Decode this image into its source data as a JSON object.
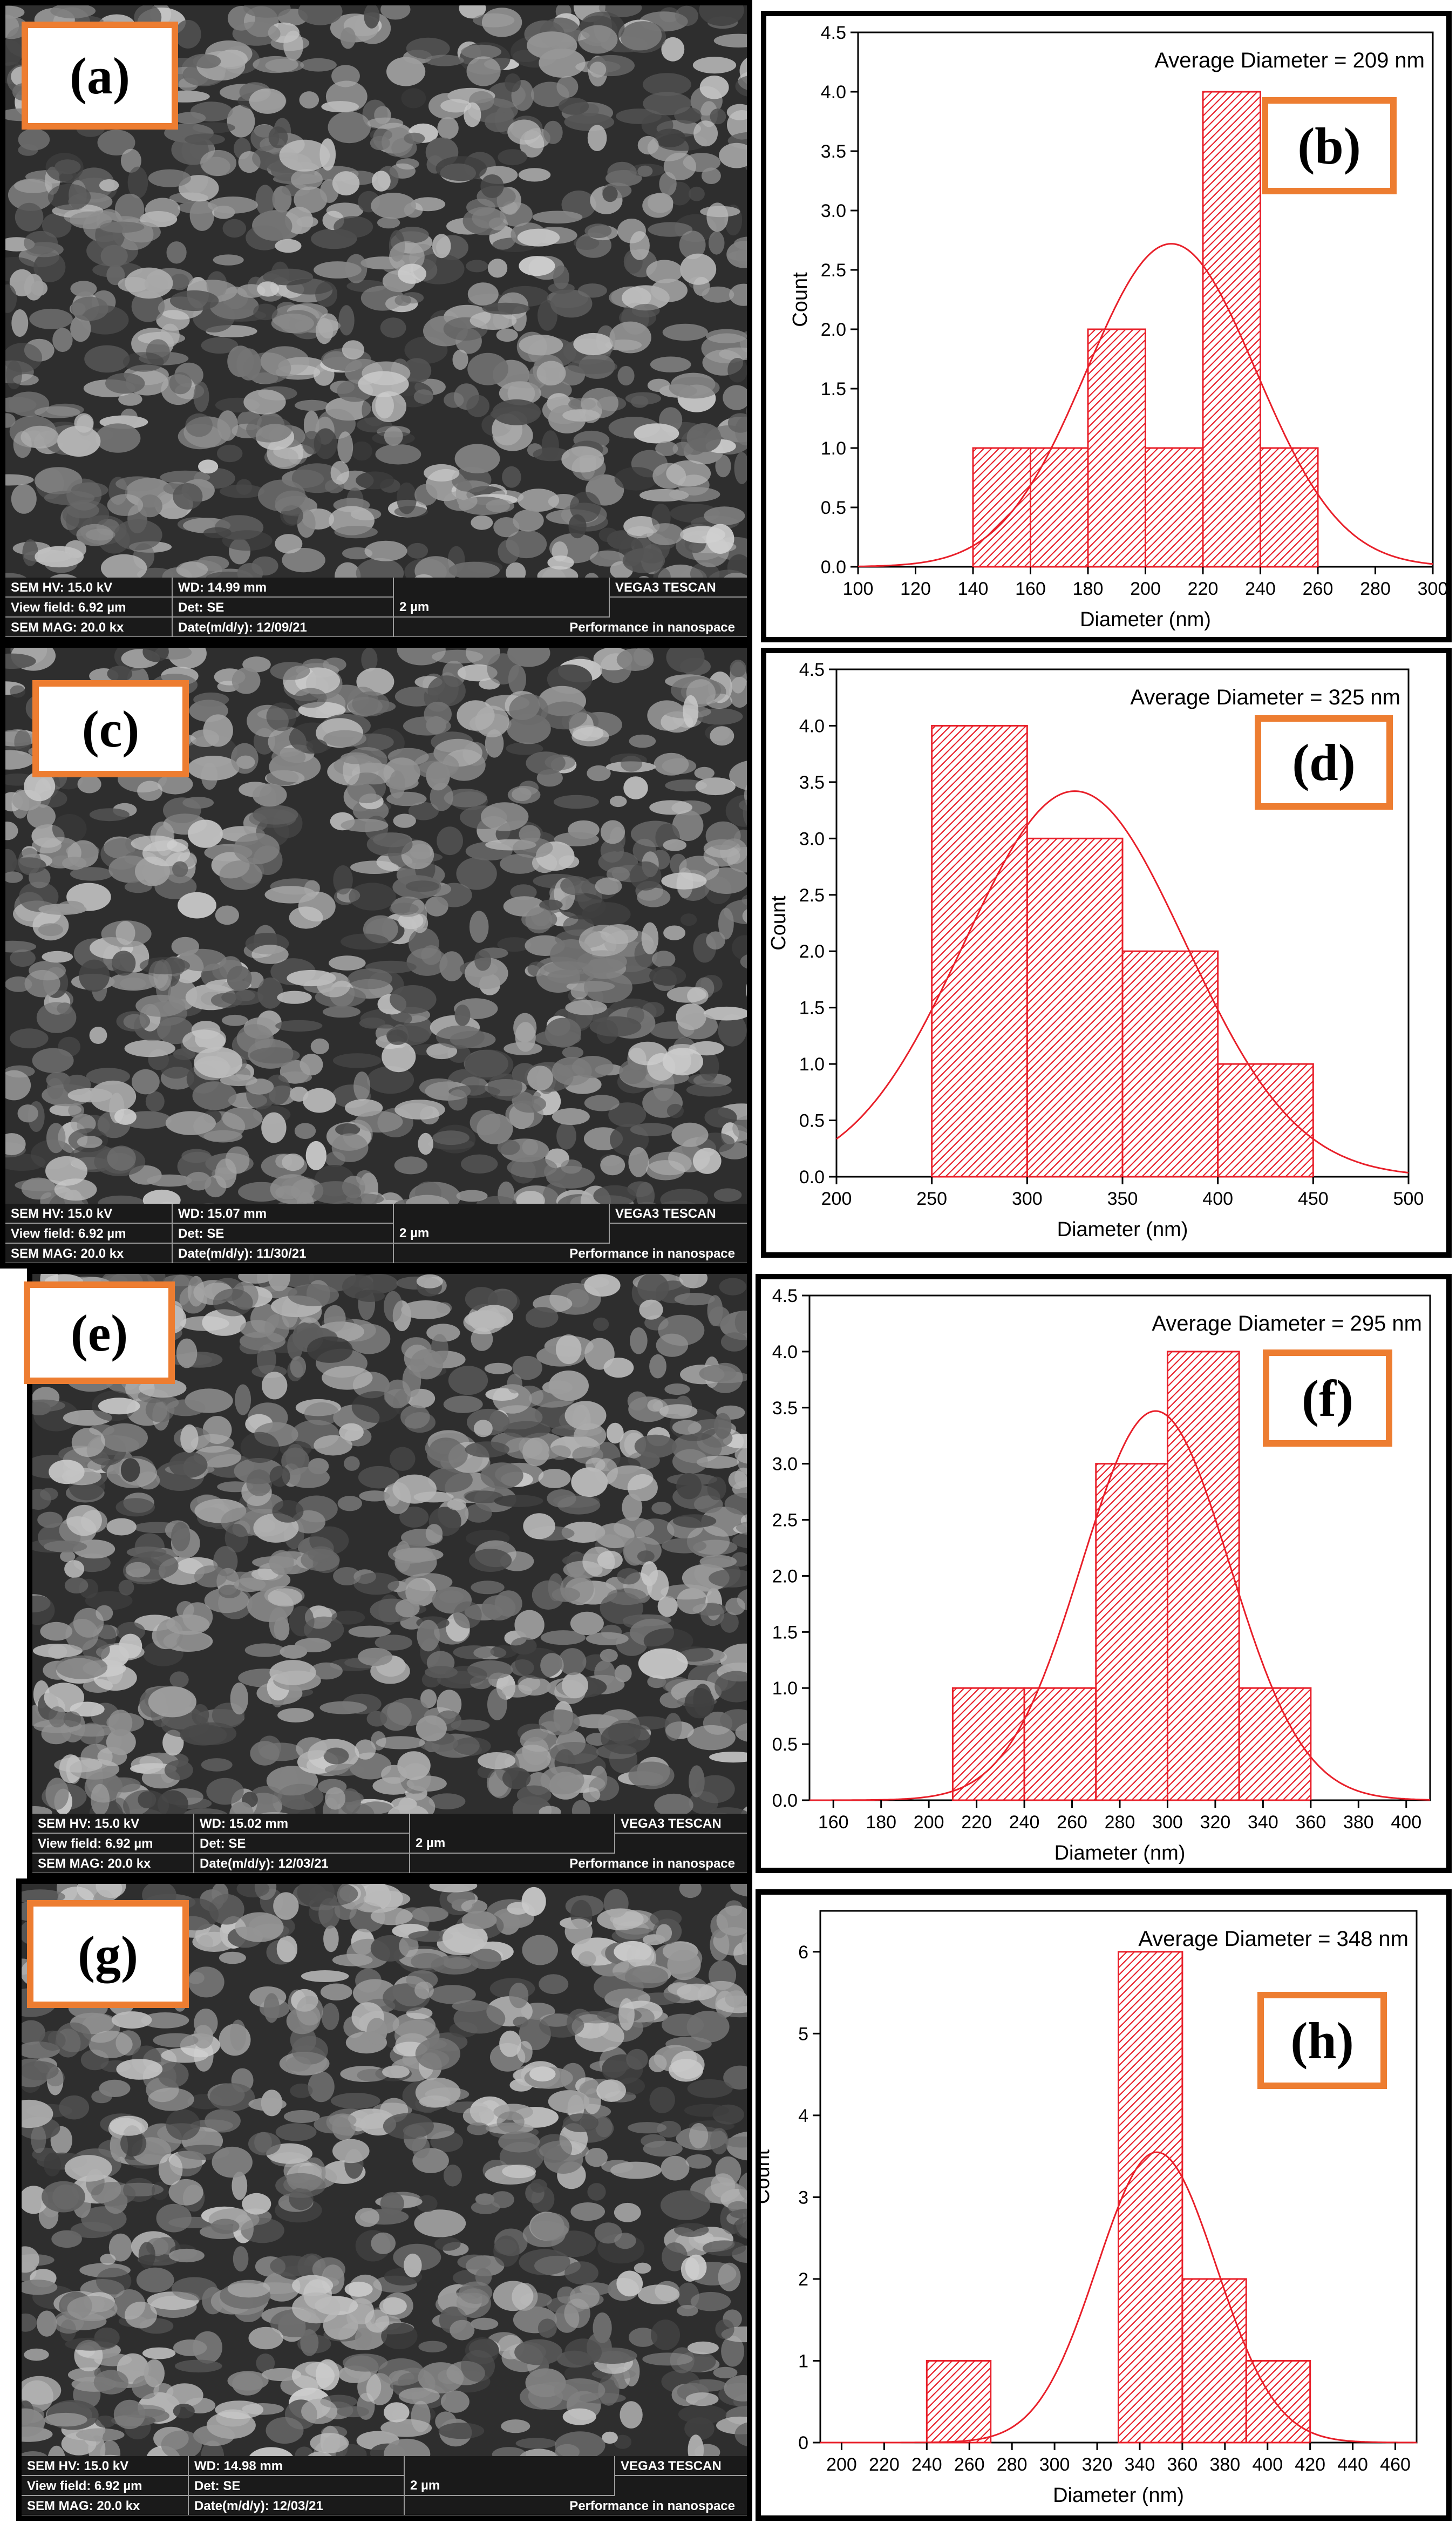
{
  "panels": [
    {
      "sem_label": "(a)",
      "chart_label": "(b)",
      "sem_info": {
        "hv": "SEM HV: 15.0 kV",
        "wd": "WD: 14.99 mm",
        "scale": "2 µm",
        "brand": "VEGA3 TESCAN",
        "view": "View field: 6.92 µm",
        "det": "Det: SE",
        "mag": "SEM MAG: 20.0 kx",
        "date": "Date(m/d/y): 12/09/21",
        "perf": "Performance in nanospace"
      }
    },
    {
      "sem_label": "(c)",
      "chart_label": "(d)",
      "sem_info": {
        "hv": "SEM HV: 15.0 kV",
        "wd": "WD: 15.07 mm",
        "scale": "2 µm",
        "brand": "VEGA3 TESCAN",
        "view": "View field: 6.92 µm",
        "det": "Det: SE",
        "mag": "SEM MAG: 20.0 kx",
        "date": "Date(m/d/y): 11/30/21",
        "perf": "Performance in nanospace"
      }
    },
    {
      "sem_label": "(e)",
      "chart_label": "(f)",
      "sem_info": {
        "hv": "SEM HV: 15.0 kV",
        "wd": "WD: 15.02 mm",
        "scale": "2 µm",
        "brand": "VEGA3 TESCAN",
        "view": "View field: 6.92 µm",
        "det": "Det: SE",
        "mag": "SEM MAG: 20.0 kx",
        "date": "Date(m/d/y): 12/03/21",
        "perf": "Performance in nanospace"
      }
    },
    {
      "sem_label": "(g)",
      "chart_label": "(h)",
      "sem_info": {
        "hv": "SEM HV: 15.0 kV",
        "wd": "WD: 14.98 mm",
        "scale": "2 µm",
        "brand": "VEGA3 TESCAN",
        "view": "View field: 6.92 µm",
        "det": "Det: SE",
        "mag": "SEM MAG: 20.0 kx",
        "date": "Date(m/d/y): 12/03/21",
        "perf": "Performance in nanospace"
      }
    }
  ],
  "chart_data": [
    {
      "type": "bar",
      "annotation": "Average Diameter = 209 nm",
      "xlabel": "Diameter (nm)",
      "ylabel": "Count",
      "xlim": [
        100,
        300
      ],
      "ylim": [
        0,
        4.5
      ],
      "xticks": [
        100,
        120,
        140,
        160,
        180,
        200,
        220,
        240,
        260,
        280,
        300
      ],
      "xtick_labels": [
        "100",
        "120",
        "140",
        "160",
        "180",
        "200",
        "220",
        "240",
        "260",
        "280",
        "300"
      ],
      "yticks": [
        0,
        0.5,
        1,
        1.5,
        2,
        2.5,
        3,
        3.5,
        4,
        4.5
      ],
      "ytick_labels": [
        "0.0",
        "0.5",
        "1.0",
        "1.5",
        "2.0",
        "2.5",
        "3.0",
        "3.5",
        "4.0",
        "4.5"
      ],
      "bins": [
        {
          "x0": 140,
          "x1": 160,
          "count": 1
        },
        {
          "x0": 160,
          "x1": 180,
          "count": 1
        },
        {
          "x0": 180,
          "x1": 200,
          "count": 2
        },
        {
          "x0": 200,
          "x1": 220,
          "count": 1
        },
        {
          "x0": 220,
          "x1": 240,
          "count": 4
        },
        {
          "x0": 240,
          "x1": 260,
          "count": 1
        }
      ],
      "fit": {
        "mean": 209,
        "sigma": 29.5,
        "peak": 2.72
      },
      "color": "#E8202A"
    },
    {
      "type": "bar",
      "annotation": "Average Diameter = 325 nm",
      "xlabel": "Diameter (nm)",
      "ylabel": "Count",
      "xlim": [
        200,
        500
      ],
      "ylim": [
        0,
        4.5
      ],
      "xticks": [
        200,
        250,
        300,
        350,
        400,
        450,
        500
      ],
      "xtick_labels": [
        "200",
        "250",
        "300",
        "350",
        "400",
        "450",
        "500"
      ],
      "yticks": [
        0,
        0.5,
        1,
        1.5,
        2,
        2.5,
        3,
        3.5,
        4,
        4.5
      ],
      "ytick_labels": [
        "0.0",
        "0.5",
        "1.0",
        "1.5",
        "2.0",
        "2.5",
        "3.0",
        "3.5",
        "4.0",
        "4.5"
      ],
      "bins": [
        {
          "x0": 250,
          "x1": 300,
          "count": 4
        },
        {
          "x0": 300,
          "x1": 350,
          "count": 3
        },
        {
          "x0": 350,
          "x1": 400,
          "count": 2
        },
        {
          "x0": 400,
          "x1": 450,
          "count": 1
        }
      ],
      "fit": {
        "mean": 325,
        "sigma": 58,
        "peak": 3.42
      },
      "color": "#E8202A"
    },
    {
      "type": "bar",
      "annotation": "Average Diameter = 295 nm",
      "xlabel": "Diameter (nm)",
      "ylabel": "Count",
      "xlim": [
        150,
        410
      ],
      "ylim": [
        0,
        4.5
      ],
      "xticks": [
        160,
        180,
        200,
        220,
        240,
        260,
        280,
        300,
        320,
        340,
        360,
        380,
        400
      ],
      "xtick_labels": [
        "160",
        "180",
        "200",
        "220",
        "240",
        "260",
        "280",
        "300",
        "320",
        "340",
        "360",
        "380",
        "400"
      ],
      "yticks": [
        0,
        0.5,
        1,
        1.5,
        2,
        2.5,
        3,
        3.5,
        4,
        4.5
      ],
      "ytick_labels": [
        "0.0",
        "0.5",
        "1.0",
        "1.5",
        "2.0",
        "2.5",
        "3.0",
        "3.5",
        "4.0",
        "4.5"
      ],
      "bins": [
        {
          "x0": 210,
          "x1": 240,
          "count": 1
        },
        {
          "x0": 240,
          "x1": 270,
          "count": 1
        },
        {
          "x0": 270,
          "x1": 300,
          "count": 3
        },
        {
          "x0": 300,
          "x1": 330,
          "count": 4
        },
        {
          "x0": 330,
          "x1": 360,
          "count": 1
        }
      ],
      "fit": {
        "mean": 295,
        "sigma": 31,
        "peak": 3.47
      },
      "color": "#E8202A"
    },
    {
      "type": "bar",
      "annotation": "Average Diameter = 348 nm",
      "xlabel": "Diameter (nm)",
      "ylabel": "Count",
      "xlim": [
        190,
        470
      ],
      "ylim": [
        0,
        6.5
      ],
      "xticks": [
        200,
        220,
        240,
        260,
        280,
        300,
        320,
        340,
        360,
        380,
        400,
        420,
        440,
        460
      ],
      "xtick_labels": [
        "200",
        "220",
        "240",
        "260",
        "280",
        "300",
        "320",
        "340",
        "360",
        "380",
        "400",
        "420",
        "440",
        "460"
      ],
      "yticks": [
        0,
        1,
        2,
        3,
        4,
        5,
        6
      ],
      "ytick_labels": [
        "0",
        "1",
        "2",
        "3",
        "4",
        "5",
        "6"
      ],
      "bins": [
        {
          "x0": 240,
          "x1": 270,
          "count": 1
        },
        {
          "x0": 330,
          "x1": 360,
          "count": 6
        },
        {
          "x0": 360,
          "x1": 390,
          "count": 2
        },
        {
          "x0": 390,
          "x1": 420,
          "count": 1
        }
      ],
      "fit": {
        "mean": 348,
        "sigma": 28,
        "peak": 3.55
      },
      "color": "#E8202A"
    }
  ]
}
